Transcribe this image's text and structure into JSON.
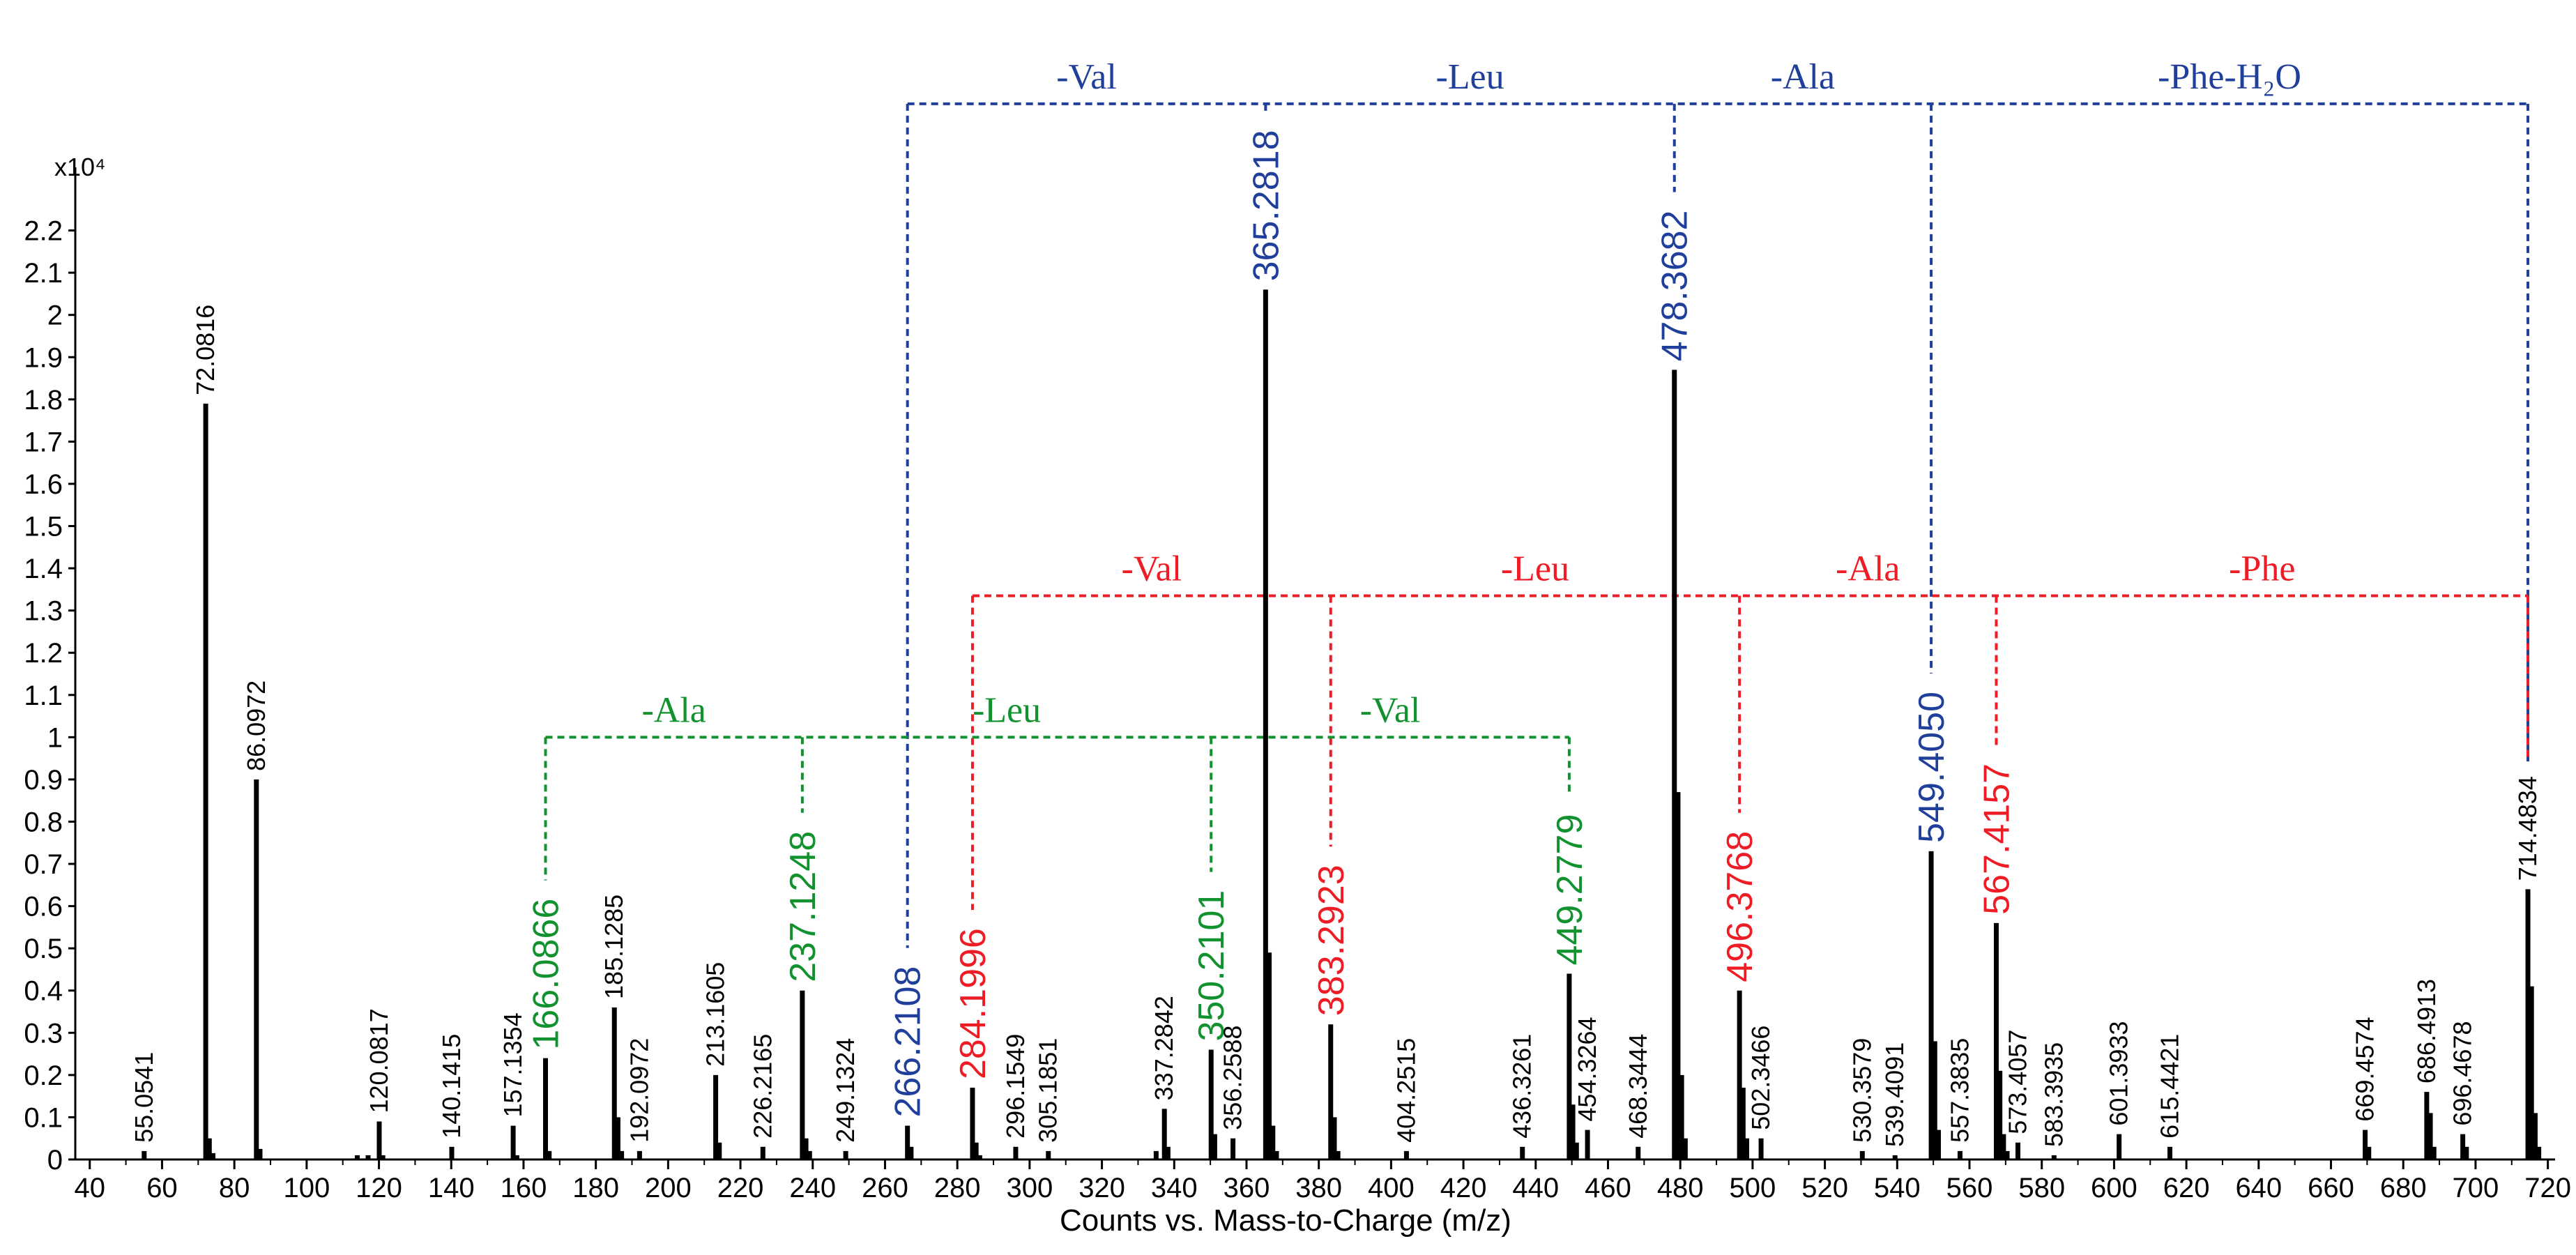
{
  "chart_data": {
    "type": "bar",
    "title": "",
    "xlabel": "Counts vs. Mass-to-Charge (m/z)",
    "ylabel": "",
    "y_scale_label": "x10⁴",
    "xlim": [
      36,
      722
    ],
    "ylim": [
      0,
      2.3
    ],
    "xticks": [
      40,
      60,
      80,
      100,
      120,
      140,
      160,
      180,
      200,
      220,
      240,
      260,
      280,
      300,
      320,
      340,
      360,
      380,
      400,
      420,
      440,
      460,
      480,
      500,
      520,
      540,
      560,
      580,
      600,
      620,
      640,
      660,
      680,
      700,
      720
    ],
    "yticks": [
      0,
      0.1,
      0.2,
      0.3,
      0.4,
      0.5,
      0.6,
      0.7,
      0.8,
      0.9,
      1,
      1.1,
      1.2,
      1.3,
      1.4,
      1.5,
      1.6,
      1.7,
      1.8,
      1.9,
      2,
      2.1,
      2.2
    ],
    "colors": {
      "axis": "#000000",
      "blue": "#1f3f9a",
      "red": "#ee1c25",
      "green": "#11922f",
      "black": "#000000"
    },
    "peaks": [
      {
        "mz": 55.0541,
        "y": 0.02,
        "label": "55.0541",
        "color": "black"
      },
      {
        "mz": 72.0816,
        "y": 1.79,
        "label": "72.0816",
        "color": "black"
      },
      {
        "mz": 86.0972,
        "y": 0.9,
        "label": "86.0972",
        "color": "black"
      },
      {
        "mz": 120.0817,
        "y": 0.09,
        "label": "120.0817",
        "color": "black"
      },
      {
        "mz": 140.1415,
        "y": 0.03,
        "label": "140.1415",
        "color": "black"
      },
      {
        "mz": 157.1354,
        "y": 0.08,
        "label": "157.1354",
        "color": "black"
      },
      {
        "mz": 166.0866,
        "y": 0.24,
        "label": "166.0866",
        "color": "green"
      },
      {
        "mz": 185.1285,
        "y": 0.36,
        "label": "185.1285",
        "color": "black"
      },
      {
        "mz": 192.0972,
        "y": 0.02,
        "label": "192.0972",
        "color": "black"
      },
      {
        "mz": 213.1605,
        "y": 0.2,
        "label": "213.1605",
        "color": "black"
      },
      {
        "mz": 226.2165,
        "y": 0.03,
        "label": "226.2165",
        "color": "black"
      },
      {
        "mz": 237.1248,
        "y": 0.4,
        "label": "237.1248",
        "color": "green"
      },
      {
        "mz": 249.1324,
        "y": 0.02,
        "label": "249.1324",
        "color": "black"
      },
      {
        "mz": 266.2108,
        "y": 0.08,
        "label": "266.2108",
        "color": "blue"
      },
      {
        "mz": 284.1996,
        "y": 0.17,
        "label": "284.1996",
        "color": "red"
      },
      {
        "mz": 296.1549,
        "y": 0.03,
        "label": "296.1549",
        "color": "black"
      },
      {
        "mz": 305.1851,
        "y": 0.02,
        "label": "305.1851",
        "color": "black"
      },
      {
        "mz": 337.2842,
        "y": 0.12,
        "label": "337.2842",
        "color": "black"
      },
      {
        "mz": 350.2101,
        "y": 0.26,
        "label": "350.2101",
        "color": "green"
      },
      {
        "mz": 356.2588,
        "y": 0.05,
        "label": "356.2588",
        "color": "black"
      },
      {
        "mz": 365.2818,
        "y": 2.06,
        "label": "365.2818",
        "color": "blue"
      },
      {
        "mz": 383.2923,
        "y": 0.32,
        "label": "383.2923",
        "color": "red"
      },
      {
        "mz": 404.2515,
        "y": 0.02,
        "label": "404.2515",
        "color": "black"
      },
      {
        "mz": 436.3261,
        "y": 0.03,
        "label": "436.3261",
        "color": "black"
      },
      {
        "mz": 449.2779,
        "y": 0.44,
        "label": "449.2779",
        "color": "green"
      },
      {
        "mz": 454.3264,
        "y": 0.07,
        "label": "454.3264",
        "color": "black"
      },
      {
        "mz": 468.3444,
        "y": 0.03,
        "label": "468.3444",
        "color": "black"
      },
      {
        "mz": 478.3682,
        "y": 1.87,
        "label": "478.3682",
        "color": "blue"
      },
      {
        "mz": 496.3768,
        "y": 0.4,
        "label": "496.3768",
        "color": "red"
      },
      {
        "mz": 502.3466,
        "y": 0.05,
        "label": "502.3466",
        "color": "black"
      },
      {
        "mz": 530.3579,
        "y": 0.02,
        "label": "530.3579",
        "color": "black"
      },
      {
        "mz": 539.4091,
        "y": 0.01,
        "label": "539.4091",
        "color": "black"
      },
      {
        "mz": 549.405,
        "y": 0.73,
        "label": "549.4050",
        "color": "blue"
      },
      {
        "mz": 557.3835,
        "y": 0.02,
        "label": "557.3835",
        "color": "black"
      },
      {
        "mz": 567.4157,
        "y": 0.56,
        "label": "567.4157",
        "color": "red"
      },
      {
        "mz": 573.4057,
        "y": 0.04,
        "label": "573.4057",
        "color": "black"
      },
      {
        "mz": 583.3935,
        "y": 0.01,
        "label": "583.3935",
        "color": "black"
      },
      {
        "mz": 601.3933,
        "y": 0.06,
        "label": "601.3933",
        "color": "black"
      },
      {
        "mz": 615.4421,
        "y": 0.03,
        "label": "615.4421",
        "color": "black"
      },
      {
        "mz": 669.4574,
        "y": 0.07,
        "label": "669.4574",
        "color": "black"
      },
      {
        "mz": 686.4913,
        "y": 0.16,
        "label": "686.4913",
        "color": "black"
      },
      {
        "mz": 696.4678,
        "y": 0.06,
        "label": "696.4678",
        "color": "black"
      },
      {
        "mz": 714.4834,
        "y": 0.64,
        "label": "714.4834",
        "color": "black"
      }
    ],
    "minor_peaks": [
      {
        "mz": 73.08,
        "y": 0.05
      },
      {
        "mz": 74.08,
        "y": 0.015
      },
      {
        "mz": 87.1,
        "y": 0.025
      },
      {
        "mz": 114,
        "y": 0.01
      },
      {
        "mz": 117,
        "y": 0.01
      },
      {
        "mz": 121.08,
        "y": 0.01
      },
      {
        "mz": 158.14,
        "y": 0.01
      },
      {
        "mz": 167.09,
        "y": 0.02
      },
      {
        "mz": 186.13,
        "y": 0.1
      },
      {
        "mz": 187.13,
        "y": 0.02
      },
      {
        "mz": 214.16,
        "y": 0.04
      },
      {
        "mz": 238.13,
        "y": 0.05
      },
      {
        "mz": 239.13,
        "y": 0.02
      },
      {
        "mz": 267.21,
        "y": 0.03
      },
      {
        "mz": 285.2,
        "y": 0.04
      },
      {
        "mz": 286.2,
        "y": 0.01
      },
      {
        "mz": 335,
        "y": 0.02
      },
      {
        "mz": 338.28,
        "y": 0.03
      },
      {
        "mz": 351.21,
        "y": 0.06
      },
      {
        "mz": 366.28,
        "y": 0.49
      },
      {
        "mz": 367.29,
        "y": 0.08
      },
      {
        "mz": 368.29,
        "y": 0.02
      },
      {
        "mz": 384.3,
        "y": 0.1
      },
      {
        "mz": 385.3,
        "y": 0.02
      },
      {
        "mz": 450.28,
        "y": 0.13
      },
      {
        "mz": 451.28,
        "y": 0.04
      },
      {
        "mz": 479.37,
        "y": 0.87
      },
      {
        "mz": 480.37,
        "y": 0.2
      },
      {
        "mz": 481.38,
        "y": 0.05
      },
      {
        "mz": 497.38,
        "y": 0.17
      },
      {
        "mz": 498.38,
        "y": 0.05
      },
      {
        "mz": 550.41,
        "y": 0.28
      },
      {
        "mz": 551.41,
        "y": 0.07
      },
      {
        "mz": 568.42,
        "y": 0.21
      },
      {
        "mz": 569.42,
        "y": 0.06
      },
      {
        "mz": 570.42,
        "y": 0.02
      },
      {
        "mz": 670.46,
        "y": 0.03
      },
      {
        "mz": 687.49,
        "y": 0.11
      },
      {
        "mz": 688.49,
        "y": 0.03
      },
      {
        "mz": 697.47,
        "y": 0.03
      },
      {
        "mz": 715.48,
        "y": 0.41
      },
      {
        "mz": 716.49,
        "y": 0.11
      },
      {
        "mz": 717.49,
        "y": 0.03
      }
    ],
    "fragment_ladders": [
      {
        "color": "blue",
        "level_y": 2.5,
        "stems": [
          266.2108,
          365.2818,
          478.3682,
          549.405,
          714.4834
        ],
        "loss_labels": [
          "-Val",
          "-Leu",
          "-Ala",
          "-Phe-H₂O"
        ]
      },
      {
        "color": "red",
        "level_y": 1.335,
        "stems": [
          284.1996,
          383.2923,
          496.3768,
          567.4157,
          714.4834
        ],
        "loss_labels": [
          "-Val",
          "-Leu",
          "-Ala",
          "-Phe"
        ]
      },
      {
        "color": "green",
        "level_y": 1.0,
        "stems": [
          166.0866,
          237.1248,
          350.2101,
          449.2779
        ],
        "loss_labels": [
          "-Ala",
          "-Leu",
          "-Val"
        ]
      }
    ]
  }
}
